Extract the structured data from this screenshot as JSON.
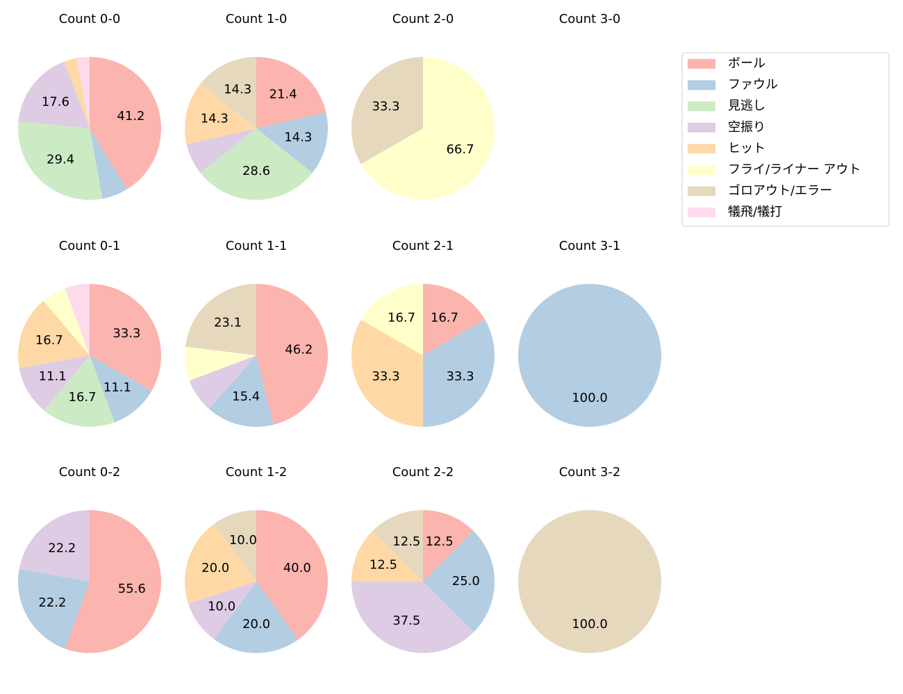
{
  "chart_data": [
    {
      "type": "pie",
      "title": "Count 0-0",
      "values": [
        41.2,
        5.9,
        29.4,
        17.6,
        2.9,
        0,
        0,
        2.9
      ],
      "value_labels": [
        "41.2",
        null,
        "29.4",
        "17.6",
        null,
        null,
        null,
        null
      ]
    },
    {
      "type": "pie",
      "title": "Count 1-0",
      "values": [
        21.4,
        14.3,
        28.6,
        7.1,
        14.3,
        0,
        14.3,
        0
      ],
      "value_labels": [
        "21.4",
        "14.3",
        "28.6",
        null,
        "14.3",
        null,
        "14.3",
        null
      ]
    },
    {
      "type": "pie",
      "title": "Count 2-0",
      "values": [
        0,
        0,
        0,
        0,
        0,
        66.7,
        33.3,
        0
      ],
      "value_labels": [
        null,
        null,
        null,
        null,
        null,
        "66.7",
        "33.3",
        null
      ]
    },
    {
      "type": "pie",
      "title": "Count 3-0",
      "values": [],
      "value_labels": []
    },
    {
      "type": "pie",
      "title": "Count 0-1",
      "values": [
        33.3,
        11.1,
        16.7,
        11.1,
        16.7,
        5.6,
        0,
        5.6
      ],
      "value_labels": [
        "33.3",
        "11.1",
        "16.7",
        "11.1",
        "16.7",
        null,
        null,
        null
      ]
    },
    {
      "type": "pie",
      "title": "Count 1-1",
      "values": [
        46.2,
        15.4,
        0,
        7.7,
        0,
        7.7,
        23.1,
        0
      ],
      "value_labels": [
        "46.2",
        "15.4",
        null,
        null,
        null,
        null,
        "23.1",
        null
      ]
    },
    {
      "type": "pie",
      "title": "Count 2-1",
      "values": [
        16.7,
        33.3,
        0,
        0,
        33.3,
        16.7,
        0,
        0
      ],
      "value_labels": [
        "16.7",
        "33.3",
        null,
        null,
        "33.3",
        "16.7",
        null,
        null
      ]
    },
    {
      "type": "pie",
      "title": "Count 3-1",
      "values": [
        0,
        100,
        0,
        0,
        0,
        0,
        0,
        0
      ],
      "value_labels": [
        null,
        "100.0",
        null,
        null,
        null,
        null,
        null,
        null
      ]
    },
    {
      "type": "pie",
      "title": "Count 0-2",
      "values": [
        55.6,
        22.2,
        0,
        22.2,
        0,
        0,
        0,
        0
      ],
      "value_labels": [
        "55.6",
        "22.2",
        null,
        "22.2",
        null,
        null,
        null,
        null
      ]
    },
    {
      "type": "pie",
      "title": "Count 1-2",
      "values": [
        40,
        20,
        0,
        10,
        20,
        0,
        10,
        0
      ],
      "value_labels": [
        "40.0",
        "20.0",
        null,
        "10.0",
        "20.0",
        null,
        "10.0",
        null
      ]
    },
    {
      "type": "pie",
      "title": "Count 2-2",
      "values": [
        12.5,
        25,
        0,
        37.5,
        12.5,
        0,
        12.5,
        0
      ],
      "value_labels": [
        "12.5",
        "25.0",
        null,
        "37.5",
        "12.5",
        null,
        "12.5",
        null
      ]
    },
    {
      "type": "pie",
      "title": "Count 3-2",
      "values": [
        0,
        0,
        0,
        0,
        0,
        0,
        100,
        0
      ],
      "value_labels": [
        null,
        null,
        null,
        null,
        null,
        null,
        "100.0",
        null
      ]
    }
  ],
  "legend": {
    "location": "upper right",
    "labels": [
      "ボール",
      "ファウル",
      "見逃し",
      "空振り",
      "ヒット",
      "フライ/ライナー アウト",
      "ゴロアウト/エラー",
      "犠飛/犠打"
    ],
    "colors": [
      "#fbb4ae",
      "#b3cde3",
      "#ccebc5",
      "#decbe4",
      "#fed9a6",
      "#ffffcc",
      "#e5d8bd",
      "#fddaec"
    ]
  }
}
